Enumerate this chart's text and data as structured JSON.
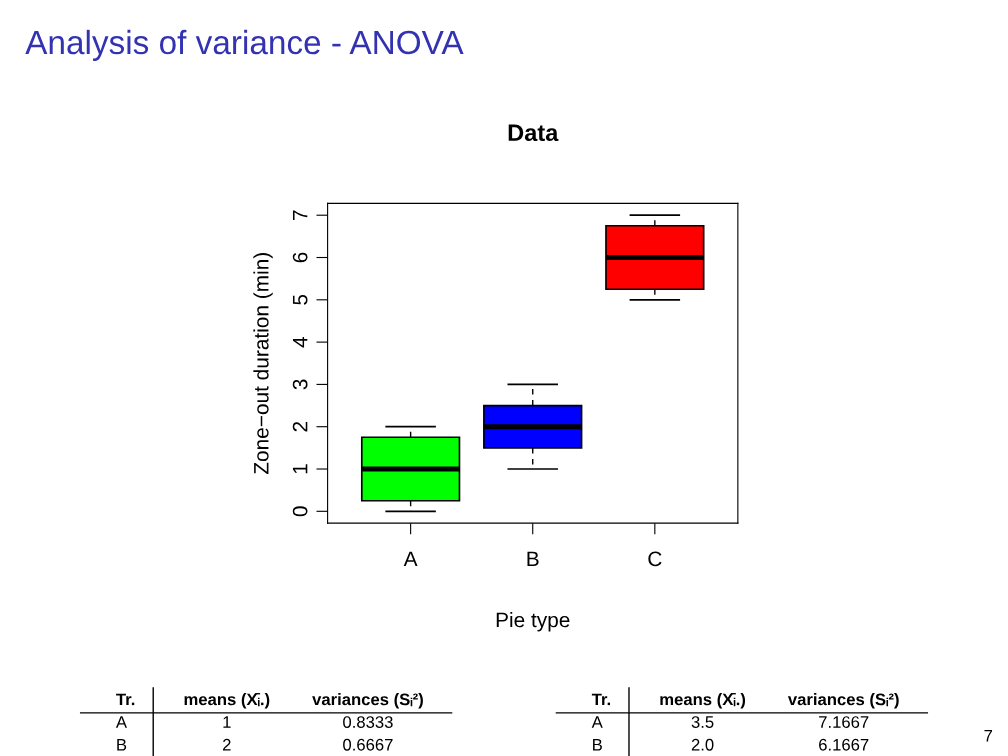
{
  "chart_data": [
    {
      "type": "box",
      "title": "Data",
      "xlabel": "Pie type",
      "ylabel": "Zone−out duration (min)",
      "categories": [
        "A",
        "B",
        "C"
      ],
      "boxes": [
        {
          "low": 0,
          "q1": 0.25,
          "median": 1,
          "q3": 1.75,
          "high": 2
        },
        {
          "low": 1,
          "q1": 1.5,
          "median": 2,
          "q3": 2.5,
          "high": 3
        },
        {
          "low": 5,
          "q1": 5.25,
          "median": 6,
          "q3": 6.75,
          "high": 7
        }
      ],
      "colors": [
        "#00ff00",
        "#0000ff",
        "#ff0000"
      ],
      "ylim": [
        -0.28,
        7.28
      ],
      "yticks": [
        0,
        1,
        2,
        3,
        4,
        5,
        6,
        7
      ],
      "grid": false,
      "line_style": "dashed",
      "annotations": [
        "Analysis of variance - ANOVA",
        "7"
      ]
    },
    {
      "type": "other",
      "annotations": [
        "Tr.",
        "means (X̄ᵢ.)",
        "variances (Sᵢ²)",
        "A",
        "1",
        "0.8333",
        "B",
        "2",
        "0.6667"
      ]
    },
    {
      "type": "other",
      "annotations": [
        "Tr.",
        "means (X̄ᵢ.)",
        "variances (Sᵢ²)",
        "A",
        "3.5",
        "7.1667",
        "B",
        "2.0",
        "6.1667"
      ]
    }
  ]
}
